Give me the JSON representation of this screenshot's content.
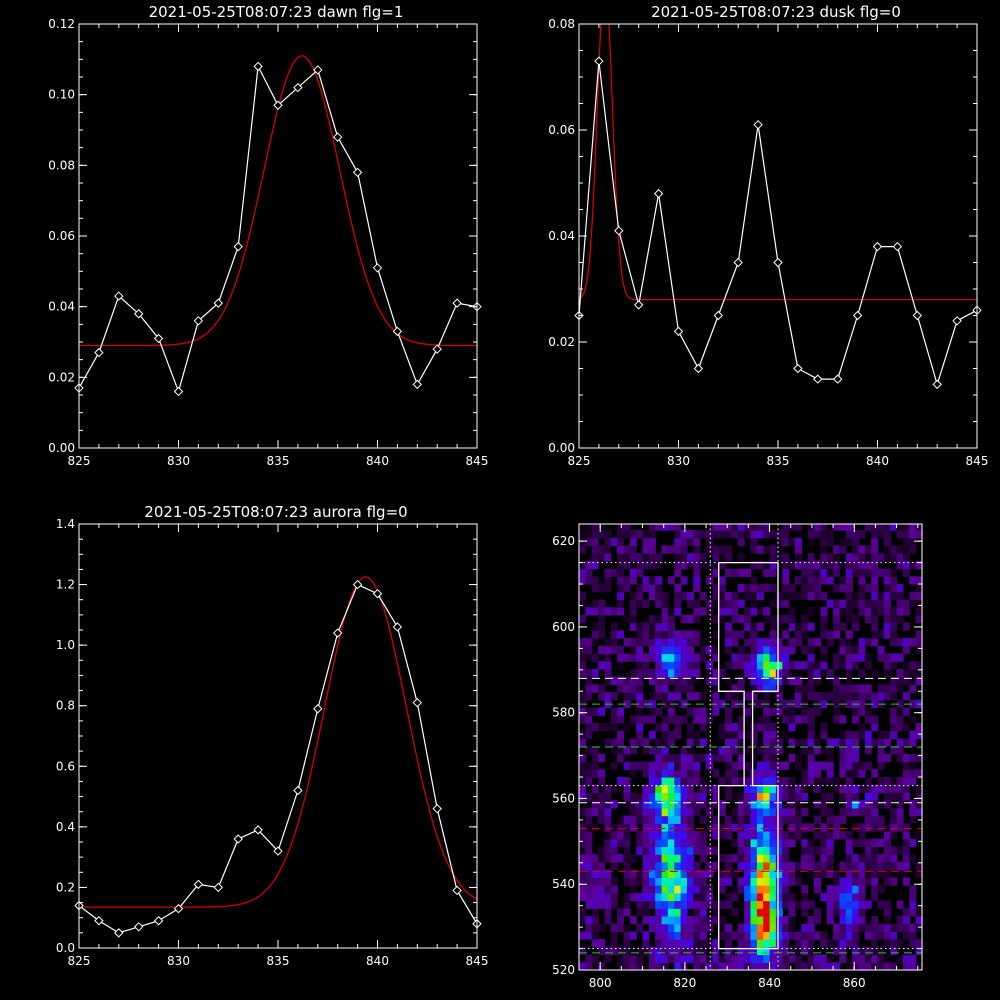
{
  "colors": {
    "background": "#000000",
    "data": "#ffffff",
    "fit": "#d40000"
  },
  "chart_data": [
    {
      "type": "line",
      "title": "2021-05-25T08:07:23 dawn flg=1",
      "xlim": [
        825,
        845
      ],
      "ylim": [
        0,
        0.12
      ],
      "xticks": [
        "825",
        "830",
        "835",
        "840",
        "845"
      ],
      "yticks": [
        "0.00",
        "0.02",
        "0.04",
        "0.06",
        "0.08",
        "0.10",
        "0.12"
      ],
      "ytick_values": [
        0,
        0.02,
        0.04,
        0.06,
        0.08,
        0.1,
        0.12
      ],
      "x": [
        825,
        826,
        827,
        828,
        829,
        830,
        831,
        832,
        833,
        834,
        835,
        836,
        837,
        838,
        839,
        840,
        841,
        842,
        843,
        844,
        845
      ],
      "series": [
        {
          "values": [
            0.017,
            0.027,
            0.043,
            0.038,
            0.031,
            0.016,
            0.036,
            0.041,
            0.057,
            0.108,
            0.097,
            0.102,
            0.107,
            0.088,
            0.078,
            0.051,
            0.033,
            0.018,
            0.028,
            0.041,
            0.04
          ]
        }
      ],
      "fit": {
        "model": "gaussian",
        "baseline": 0.029,
        "amplitude": 0.082,
        "center": 836.2,
        "sigma": 1.9
      }
    },
    {
      "type": "line",
      "title": "2021-05-25T08:07:23 dusk flg=0",
      "xlim": [
        825,
        845
      ],
      "ylim": [
        0,
        0.08
      ],
      "xticks": [
        "825",
        "830",
        "835",
        "840",
        "845"
      ],
      "yticks": [
        "0.00",
        "0.02",
        "0.04",
        "0.06",
        "0.08"
      ],
      "ytick_values": [
        0,
        0.02,
        0.04,
        0.06,
        0.08
      ],
      "x": [
        825,
        826,
        827,
        828,
        829,
        830,
        831,
        832,
        833,
        834,
        835,
        836,
        837,
        838,
        839,
        840,
        841,
        842,
        843,
        844,
        845
      ],
      "series": [
        {
          "values": [
            0.025,
            0.073,
            0.041,
            0.027,
            0.048,
            0.022,
            0.015,
            0.025,
            0.035,
            0.061,
            0.035,
            0.015,
            0.013,
            0.013,
            0.025,
            0.038,
            0.038,
            0.025,
            0.012,
            0.024,
            0.026
          ]
        }
      ],
      "fit": {
        "model": "gaussian",
        "baseline": 0.028,
        "amplitude": 0.06,
        "center": 826.3,
        "sigma": 0.38
      }
    },
    {
      "type": "line",
      "title": "2021-05-25T08:07:23 aurora flg=0",
      "xlim": [
        825,
        845
      ],
      "ylim": [
        0,
        1.4
      ],
      "xticks": [
        "825",
        "830",
        "835",
        "840",
        "845"
      ],
      "yticks": [
        "0.0",
        "0.2",
        "0.4",
        "0.6",
        "0.8",
        "1.0",
        "1.2",
        "1.4"
      ],
      "ytick_values": [
        0,
        0.2,
        0.4,
        0.6,
        0.8,
        1.0,
        1.2,
        1.4
      ],
      "x": [
        825,
        826,
        827,
        828,
        829,
        830,
        831,
        832,
        833,
        834,
        835,
        836,
        837,
        838,
        839,
        840,
        841,
        842,
        843,
        844,
        845
      ],
      "series": [
        {
          "values": [
            0.14,
            0.09,
            0.05,
            0.07,
            0.09,
            0.13,
            0.21,
            0.2,
            0.36,
            0.39,
            0.32,
            0.52,
            0.79,
            1.04,
            1.2,
            1.17,
            1.06,
            0.81,
            0.46,
            0.19,
            0.08
          ]
        }
      ],
      "fit": {
        "model": "gaussian",
        "baseline": 0.135,
        "amplitude": 1.09,
        "center": 839.4,
        "sigma": 2.05
      }
    },
    {
      "type": "heatmap",
      "title": "",
      "xlim": [
        795,
        876
      ],
      "ylim": [
        520,
        624
      ],
      "xticks": [
        "800",
        "820",
        "840",
        "860"
      ],
      "xtick_values": [
        800,
        820,
        840,
        860
      ],
      "yticks": [
        "520",
        "540",
        "560",
        "580",
        "600",
        "620"
      ],
      "ytick_values": [
        520,
        540,
        560,
        580,
        600,
        620
      ],
      "bin_size": [
        1.5,
        1.8
      ],
      "blobs": [
        {
          "x": 816,
          "y": 592,
          "sx": 2.5,
          "sy": 3,
          "peak": 0.5
        },
        {
          "x": 839,
          "y": 590,
          "sx": 2.2,
          "sy": 3,
          "peak": 0.65
        },
        {
          "x": 815,
          "y": 560,
          "sx": 2.5,
          "sy": 3.5,
          "peak": 0.6
        },
        {
          "x": 816,
          "y": 540,
          "sx": 3,
          "sy": 10,
          "peak": 0.55
        },
        {
          "x": 838,
          "y": 560,
          "sx": 2.2,
          "sy": 3,
          "peak": 0.55
        },
        {
          "x": 838,
          "y": 538,
          "sx": 2.3,
          "sy": 10,
          "peak": 0.85
        },
        {
          "x": 838,
          "y": 528,
          "sx": 2,
          "sy": 3,
          "peak": 0.45
        },
        {
          "x": 858,
          "y": 535,
          "sx": 2,
          "sy": 5,
          "peak": 0.3
        },
        {
          "x": 860,
          "y": 558,
          "sx": 2.5,
          "sy": 2,
          "peak": 0.2
        },
        {
          "x": 798,
          "y": 538,
          "sx": 3,
          "sy": 4,
          "peak": 0.15
        }
      ],
      "white_box_outline": [
        [
          828,
          615
        ],
        [
          842,
          615
        ],
        [
          842,
          585
        ],
        [
          836,
          585
        ],
        [
          836,
          563
        ],
        [
          842,
          563
        ],
        [
          842,
          525
        ],
        [
          828,
          525
        ],
        [
          828,
          563
        ],
        [
          834,
          563
        ],
        [
          834,
          585
        ],
        [
          828,
          585
        ],
        [
          828,
          615
        ]
      ],
      "white_dotted_h": [
        615,
        563,
        525
      ],
      "white_dotted_v": [
        826,
        842
      ],
      "white_dashed_h": [
        588,
        559
      ],
      "green_dashed_h": [
        582,
        572,
        524
      ],
      "red_dashed_h": [
        553,
        543
      ]
    }
  ]
}
